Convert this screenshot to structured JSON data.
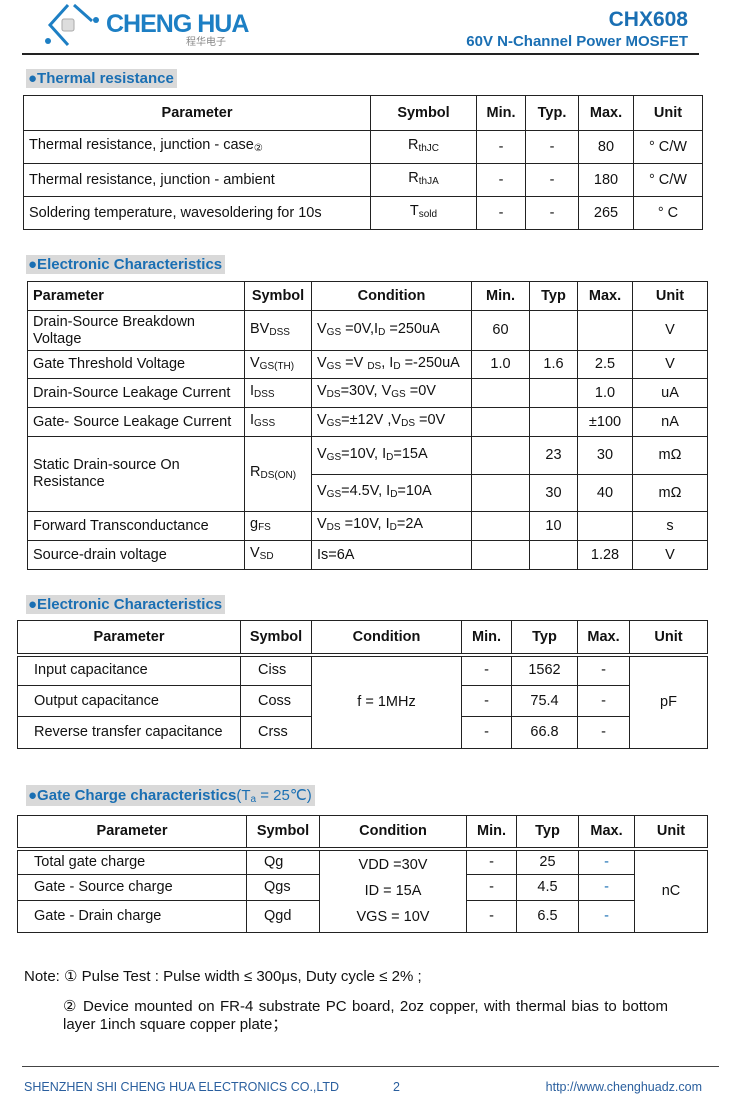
{
  "header": {
    "logo_text": "CHENG HUA",
    "logo_cn": "程华电子",
    "title": "CHX608",
    "subtitle": "60V N-Channel Power MOSFET"
  },
  "sections": {
    "thermal": "●Thermal resistance",
    "electronic1": "●Electronic Characteristics",
    "electronic2": "●Electronic Characteristics",
    "gate_charge": "●Gate Charge characteristics",
    "gate_charge_cond": [
      "(T",
      {
        "s": "a"
      },
      " = 25℃)"
    ]
  },
  "tables": {
    "thermal": {
      "headers": [
        "Parameter",
        "Symbol",
        "Min.",
        "Typ.",
        "Max.",
        "Unit"
      ],
      "rows": [
        [
          [
            "Thermal resistance, junction - case",
            {
              "s": "②"
            }
          ],
          [
            "R",
            {
              "s": "thJC"
            }
          ],
          "-",
          "-",
          "80",
          "° C/W"
        ],
        [
          "Thermal resistance, junction - ambient",
          [
            "R",
            {
              "s": "thJA"
            }
          ],
          "-",
          "-",
          "180",
          "° C/W"
        ],
        [
          "Soldering temperature, wavesoldering for 10s",
          [
            "T",
            {
              "s": "sold"
            }
          ],
          "-",
          "-",
          "265",
          "° C"
        ]
      ]
    },
    "electronic1": {
      "headers": [
        "Parameter",
        "Symbol",
        "Condition",
        "Min.",
        "Typ",
        "Max.",
        "Unit"
      ],
      "rows": [
        [
          "Drain-Source Breakdown Voltage",
          [
            "BV",
            {
              "s": "DSS"
            }
          ],
          [
            "V",
            {
              "s": "GS"
            },
            " =0V,I",
            {
              "s": "D"
            },
            " =250uA"
          ],
          "60",
          "",
          "",
          "V"
        ],
        [
          "Gate Threshold Voltage",
          [
            "V",
            {
              "s": "GS(TH)"
            }
          ],
          [
            "V",
            {
              "s": "GS"
            },
            " =V ",
            {
              "s": "DS"
            },
            ", I",
            {
              "s": "D"
            },
            " =-250uA"
          ],
          "1.0",
          "1.6",
          "2.5",
          "V"
        ],
        [
          "Drain-Source Leakage Current",
          [
            "I",
            {
              "s": "DSS"
            }
          ],
          [
            "V",
            {
              "s": "DS"
            },
            "=30V, V",
            {
              "s": "GS"
            },
            " =0V"
          ],
          "",
          "",
          "1.0",
          "uA"
        ],
        [
          "Gate- Source Leakage Current",
          [
            "I",
            {
              "s": "GSS"
            }
          ],
          [
            "V",
            {
              "s": "GS"
            },
            "=±12V ,V",
            {
              "s": "DS"
            },
            " =0V"
          ],
          "",
          "",
          "±100",
          "nA"
        ],
        [
          "Static Drain-source On Resistance",
          [
            "R",
            {
              "s": "DS(ON)"
            }
          ],
          [
            "V",
            {
              "s": "GS"
            },
            "=10V, I",
            {
              "s": "D"
            },
            "=15A"
          ],
          "",
          "23",
          "30",
          "mΩ"
        ],
        [
          null,
          null,
          [
            "V",
            {
              "s": "GS"
            },
            "=4.5V, I",
            {
              "s": "D"
            },
            "=10A"
          ],
          "",
          "30",
          "40",
          "mΩ"
        ],
        [
          "Forward Transconductance",
          [
            "g",
            {
              "s": "FS"
            }
          ],
          [
            "V",
            {
              "s": "DS"
            },
            " =10V, I",
            {
              "s": "D"
            },
            "=2A"
          ],
          "",
          "10",
          "",
          "s"
        ],
        [
          "Source-drain voltage",
          [
            "V",
            {
              "s": "SD"
            }
          ],
          "Is=6A",
          "",
          "",
          "1.28",
          "V"
        ]
      ]
    },
    "electronic2": {
      "headers": [
        "Parameter",
        "Symbol",
        "Condition",
        "Min.",
        "Typ",
        "Max.",
        "Unit"
      ],
      "rows": [
        [
          "Input capacitance",
          "Ciss",
          "f = 1MHz",
          "-",
          "1562",
          "-",
          "pF"
        ],
        [
          "Output capacitance",
          "Coss",
          null,
          "-",
          "75.4",
          "-",
          null
        ],
        [
          "Reverse transfer capacitance",
          "Crss",
          null,
          "-",
          "66.8",
          "-",
          null
        ]
      ]
    },
    "gate_charge": {
      "headers": [
        "Parameter",
        "Symbol",
        "Condition",
        "Min.",
        "Typ",
        "Max.",
        "Unit"
      ],
      "rows": [
        [
          "Total gate charge",
          "Qg",
          {
            "lines": [
              "VDD =30V",
              "ID = 15A",
              "VGS = 10V"
            ]
          },
          "-",
          "25",
          {
            "t": "-",
            "blue": true
          },
          "nC"
        ],
        [
          "Gate - Source charge",
          "Qgs",
          null,
          "-",
          "4.5",
          {
            "t": "-",
            "blue": true
          },
          null
        ],
        [
          "Gate - Drain charge",
          "Qgd",
          null,
          "-",
          "6.5",
          {
            "t": "-",
            "blue": true
          },
          null
        ]
      ]
    }
  },
  "notes": {
    "note1": "Note: ① Pulse Test : Pulse width ≤ 300μs, Duty cycle ≤ 2% ;",
    "note2": "② Device mounted on FR-4 substrate PC board, 2oz copper, with thermal bias to bottom layer 1inch square copper plate；"
  },
  "footer": {
    "company": "SHENZHEN SHI CHENG HUA ELECTRONICS CO.,LTD",
    "page": "2",
    "url": "http://www.chenghuadz.com"
  },
  "colors": {
    "brand": "#1a6fb3",
    "section_bg": "#d9d9d9"
  }
}
